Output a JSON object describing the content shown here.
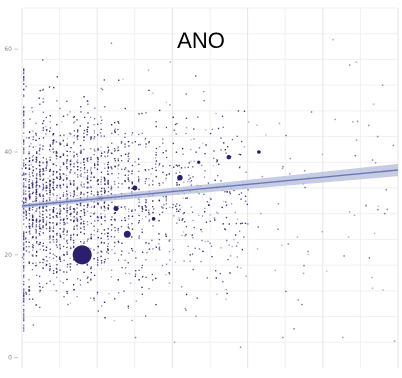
{
  "chart_data": {
    "type": "scatter",
    "title": "ANO",
    "xlabel": "",
    "ylabel": "",
    "yticks": [
      0,
      20,
      40,
      60
    ],
    "ylim": [
      -2,
      68
    ],
    "xlim": [
      0,
      100
    ],
    "grid": true,
    "point_color": "#2a1e6e",
    "trend_color": "#6b78b8",
    "band_color": "#b8bfdc",
    "trend": {
      "x": [
        0,
        100
      ],
      "y": [
        29.5,
        36.5
      ],
      "band_halfwidth_start": 0.4,
      "band_halfwidth_end": 1.2
    },
    "highlight_points": [
      {
        "x": 16,
        "y": 20,
        "size": 9.5
      },
      {
        "x": 28,
        "y": 24,
        "size": 3.5
      },
      {
        "x": 42,
        "y": 35,
        "size": 2.8
      },
      {
        "x": 30,
        "y": 33,
        "size": 2.5
      },
      {
        "x": 25,
        "y": 29,
        "size": 2.5
      },
      {
        "x": 55,
        "y": 39,
        "size": 2.2
      },
      {
        "x": 63,
        "y": 40,
        "size": 1.8
      },
      {
        "x": 21,
        "y": 31,
        "size": 2.2
      },
      {
        "x": 35,
        "y": 27,
        "size": 1.8
      },
      {
        "x": 47,
        "y": 38,
        "size": 1.6
      }
    ]
  }
}
